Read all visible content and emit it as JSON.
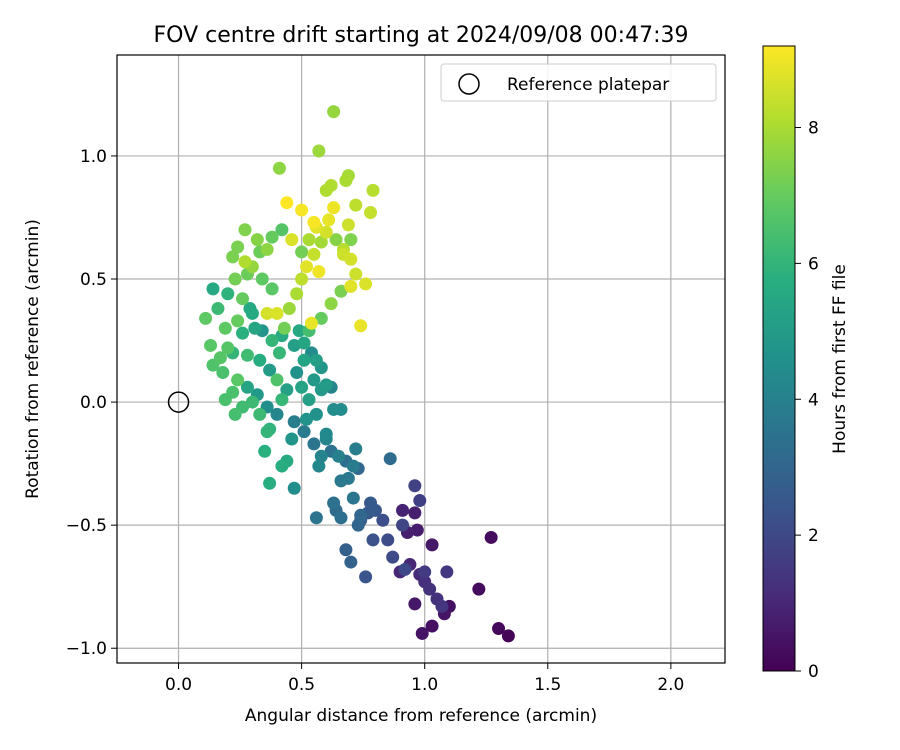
{
  "chart_data": {
    "type": "scatter",
    "title": "FOV centre drift starting at 2024/09/08 00:47:39",
    "xlabel": "Angular distance from reference (arcmin)",
    "ylabel": "Rotation from reference (arcmin)",
    "xlim": [
      -0.25,
      2.22
    ],
    "ylim": [
      -1.06,
      1.41
    ],
    "x_ticks": [
      0.0,
      0.5,
      1.0,
      1.5,
      2.0
    ],
    "x_tick_labels": [
      "0.0",
      "0.5",
      "1.0",
      "1.5",
      "2.0"
    ],
    "y_ticks": [
      -1.0,
      -0.5,
      0.0,
      0.5,
      1.0
    ],
    "y_tick_labels": [
      "−1.0",
      "−0.5",
      "0.0",
      "0.5",
      "1.0"
    ],
    "grid": true,
    "legend": {
      "placement": "top-right",
      "entries": [
        "Reference platepar"
      ]
    },
    "reference_point": {
      "x": 0.0,
      "y": 0.0
    },
    "colorbar": {
      "label": "Hours from first FF file",
      "min": 0,
      "max": 9.2,
      "ticks": [
        0,
        2,
        4,
        6,
        8
      ],
      "tick_labels": [
        "0",
        "2",
        "4",
        "6",
        "8"
      ],
      "colormap": "viridis"
    },
    "points": [
      {
        "x": 1.34,
        "y": -0.95,
        "h": 0.1
      },
      {
        "x": 1.3,
        "y": -0.92,
        "h": 0.2
      },
      {
        "x": 1.27,
        "y": -0.55,
        "h": 0.3
      },
      {
        "x": 1.22,
        "y": -0.76,
        "h": 0.3
      },
      {
        "x": 1.1,
        "y": -0.83,
        "h": 0.4
      },
      {
        "x": 1.08,
        "y": -0.86,
        "h": 0.5
      },
      {
        "x": 1.03,
        "y": -0.91,
        "h": 0.4
      },
      {
        "x": 0.99,
        "y": -0.94,
        "h": 0.5
      },
      {
        "x": 0.96,
        "y": -0.82,
        "h": 0.6
      },
      {
        "x": 1.03,
        "y": -0.58,
        "h": 0.6
      },
      {
        "x": 0.97,
        "y": -0.52,
        "h": 0.7
      },
      {
        "x": 0.96,
        "y": -0.45,
        "h": 0.8
      },
      {
        "x": 0.93,
        "y": -0.53,
        "h": 0.8
      },
      {
        "x": 0.91,
        "y": -0.44,
        "h": 0.9
      },
      {
        "x": 0.9,
        "y": -0.69,
        "h": 1.0
      },
      {
        "x": 0.94,
        "y": -0.66,
        "h": 1.0
      },
      {
        "x": 0.98,
        "y": -0.7,
        "h": 1.1
      },
      {
        "x": 1.0,
        "y": -0.73,
        "h": 1.2
      },
      {
        "x": 1.02,
        "y": -0.76,
        "h": 1.3
      },
      {
        "x": 1.05,
        "y": -0.8,
        "h": 1.3
      },
      {
        "x": 1.07,
        "y": -0.83,
        "h": 1.4
      },
      {
        "x": 1.09,
        "y": -0.69,
        "h": 1.5
      },
      {
        "x": 1.0,
        "y": -0.69,
        "h": 1.6
      },
      {
        "x": 0.98,
        "y": -0.4,
        "h": 1.7
      },
      {
        "x": 0.96,
        "y": -0.34,
        "h": 1.8
      },
      {
        "x": 0.91,
        "y": -0.5,
        "h": 1.9
      },
      {
        "x": 0.92,
        "y": -0.68,
        "h": 2.0
      },
      {
        "x": 0.87,
        "y": -0.63,
        "h": 2.1
      },
      {
        "x": 0.85,
        "y": -0.56,
        "h": 2.1
      },
      {
        "x": 0.83,
        "y": -0.48,
        "h": 2.2
      },
      {
        "x": 0.79,
        "y": -0.56,
        "h": 2.3
      },
      {
        "x": 0.76,
        "y": -0.71,
        "h": 2.4
      },
      {
        "x": 0.8,
        "y": -0.44,
        "h": 2.5
      },
      {
        "x": 0.78,
        "y": -0.41,
        "h": 2.6
      },
      {
        "x": 0.77,
        "y": -0.45,
        "h": 2.6
      },
      {
        "x": 0.74,
        "y": -0.48,
        "h": 2.7
      },
      {
        "x": 0.68,
        "y": -0.6,
        "h": 2.8
      },
      {
        "x": 0.7,
        "y": -0.65,
        "h": 2.9
      },
      {
        "x": 0.73,
        "y": -0.5,
        "h": 3.0
      },
      {
        "x": 0.74,
        "y": -0.46,
        "h": 3.1
      },
      {
        "x": 0.86,
        "y": -0.23,
        "h": 3.2
      },
      {
        "x": 0.64,
        "y": -0.44,
        "h": 3.2
      },
      {
        "x": 0.66,
        "y": -0.47,
        "h": 3.3
      },
      {
        "x": 0.63,
        "y": -0.41,
        "h": 3.4
      },
      {
        "x": 0.56,
        "y": -0.47,
        "h": 3.5
      },
      {
        "x": 0.71,
        "y": -0.39,
        "h": 3.6
      },
      {
        "x": 0.69,
        "y": -0.31,
        "h": 3.7
      },
      {
        "x": 0.66,
        "y": -0.32,
        "h": 3.7
      },
      {
        "x": 0.71,
        "y": -0.26,
        "h": 3.8
      },
      {
        "x": 0.72,
        "y": -0.19,
        "h": 3.9
      },
      {
        "x": 0.65,
        "y": -0.22,
        "h": 4.0
      },
      {
        "x": 0.6,
        "y": -0.15,
        "h": 4.1
      },
      {
        "x": 0.58,
        "y": -0.22,
        "h": 4.1
      },
      {
        "x": 0.57,
        "y": -0.26,
        "h": 4.2
      },
      {
        "x": 0.6,
        "y": -0.13,
        "h": 4.3
      },
      {
        "x": 0.63,
        "y": -0.03,
        "h": 4.4
      },
      {
        "x": 0.66,
        "y": -0.03,
        "h": 4.4
      },
      {
        "x": 0.47,
        "y": -0.35,
        "h": 4.5
      },
      {
        "x": 0.56,
        "y": -0.05,
        "h": 4.6
      },
      {
        "x": 0.52,
        "y": -0.07,
        "h": 4.7
      },
      {
        "x": 0.46,
        "y": -0.15,
        "h": 4.8
      },
      {
        "x": 0.55,
        "y": 0.09,
        "h": 4.9
      },
      {
        "x": 0.58,
        "y": 0.05,
        "h": 4.9
      },
      {
        "x": 0.6,
        "y": 0.07,
        "h": 5.0
      },
      {
        "x": 0.56,
        "y": 0.17,
        "h": 5.1
      },
      {
        "x": 0.53,
        "y": 0.01,
        "h": 5.2
      },
      {
        "x": 0.5,
        "y": 0.06,
        "h": 5.3
      },
      {
        "x": 0.51,
        "y": 0.17,
        "h": 5.3
      },
      {
        "x": 0.51,
        "y": 0.24,
        "h": 5.4
      },
      {
        "x": 0.49,
        "y": 0.29,
        "h": 5.5
      },
      {
        "x": 0.44,
        "y": -0.24,
        "h": 5.6
      },
      {
        "x": 0.42,
        "y": -0.26,
        "h": 5.7
      },
      {
        "x": 0.37,
        "y": -0.33,
        "h": 5.7
      },
      {
        "x": 0.35,
        "y": -0.2,
        "h": 5.8
      },
      {
        "x": 0.37,
        "y": -0.11,
        "h": 5.9
      },
      {
        "x": 0.36,
        "y": -0.12,
        "h": 6.0
      },
      {
        "x": 0.42,
        "y": 0.01,
        "h": 6.1
      },
      {
        "x": 0.33,
        "y": -0.05,
        "h": 6.2
      },
      {
        "x": 0.3,
        "y": 0.0,
        "h": 6.2
      },
      {
        "x": 0.26,
        "y": -0.02,
        "h": 6.3
      },
      {
        "x": 0.23,
        "y": -0.05,
        "h": 6.4
      },
      {
        "x": 0.22,
        "y": 0.04,
        "h": 6.5
      },
      {
        "x": 0.19,
        "y": 0.01,
        "h": 6.5
      },
      {
        "x": 0.14,
        "y": 0.15,
        "h": 6.6
      },
      {
        "x": 0.17,
        "y": 0.18,
        "h": 6.7
      },
      {
        "x": 0.2,
        "y": 0.22,
        "h": 6.7
      },
      {
        "x": 0.13,
        "y": 0.23,
        "h": 6.8
      },
      {
        "x": 0.19,
        "y": 0.3,
        "h": 6.9
      },
      {
        "x": 0.24,
        "y": 0.33,
        "h": 7.0
      },
      {
        "x": 0.26,
        "y": 0.42,
        "h": 7.0
      },
      {
        "x": 0.28,
        "y": 0.52,
        "h": 7.1
      },
      {
        "x": 0.23,
        "y": 0.5,
        "h": 7.2
      },
      {
        "x": 0.22,
        "y": 0.59,
        "h": 7.3
      },
      {
        "x": 0.24,
        "y": 0.63,
        "h": 7.3
      },
      {
        "x": 0.27,
        "y": 0.7,
        "h": 7.4
      },
      {
        "x": 0.32,
        "y": 0.66,
        "h": 7.5
      },
      {
        "x": 0.36,
        "y": 0.62,
        "h": 7.6
      },
      {
        "x": 0.41,
        "y": 0.95,
        "h": 7.6
      },
      {
        "x": 0.63,
        "y": 1.18,
        "h": 7.7
      },
      {
        "x": 0.57,
        "y": 1.02,
        "h": 7.8
      },
      {
        "x": 0.69,
        "y": 0.92,
        "h": 7.9
      },
      {
        "x": 0.68,
        "y": 0.9,
        "h": 8.0
      },
      {
        "x": 0.6,
        "y": 0.86,
        "h": 8.1
      },
      {
        "x": 0.62,
        "y": 0.88,
        "h": 8.1
      },
      {
        "x": 0.79,
        "y": 0.86,
        "h": 8.2
      },
      {
        "x": 0.72,
        "y": 0.8,
        "h": 8.3
      },
      {
        "x": 0.78,
        "y": 0.77,
        "h": 8.4
      },
      {
        "x": 0.69,
        "y": 0.72,
        "h": 8.5
      },
      {
        "x": 0.67,
        "y": 0.6,
        "h": 8.5
      },
      {
        "x": 0.7,
        "y": 0.58,
        "h": 8.6
      },
      {
        "x": 0.76,
        "y": 0.48,
        "h": 8.7
      },
      {
        "x": 0.7,
        "y": 0.47,
        "h": 8.8
      },
      {
        "x": 0.74,
        "y": 0.31,
        "h": 8.9
      },
      {
        "x": 0.57,
        "y": 0.53,
        "h": 9.0
      },
      {
        "x": 0.55,
        "y": 0.73,
        "h": 9.1
      },
      {
        "x": 0.44,
        "y": 0.81,
        "h": 9.2
      },
      {
        "x": 0.5,
        "y": 0.78,
        "h": 9.1
      },
      {
        "x": 0.63,
        "y": 0.79,
        "h": 9.0
      },
      {
        "x": 0.54,
        "y": 0.32,
        "h": 8.9
      },
      {
        "x": 0.4,
        "y": 0.36,
        "h": 8.7
      },
      {
        "x": 0.36,
        "y": 0.36,
        "h": 8.6
      },
      {
        "x": 0.3,
        "y": 0.36,
        "h": 5.6
      },
      {
        "x": 0.31,
        "y": 0.3,
        "h": 5.4
      },
      {
        "x": 0.26,
        "y": 0.28,
        "h": 5.8
      },
      {
        "x": 0.22,
        "y": 0.2,
        "h": 6.0
      },
      {
        "x": 0.28,
        "y": 0.19,
        "h": 6.3
      },
      {
        "x": 0.33,
        "y": 0.17,
        "h": 5.7
      },
      {
        "x": 0.37,
        "y": 0.13,
        "h": 5.0
      },
      {
        "x": 0.4,
        "y": 0.09,
        "h": 6.6
      },
      {
        "x": 0.44,
        "y": 0.05,
        "h": 5.2
      },
      {
        "x": 0.48,
        "y": 0.12,
        "h": 4.6
      },
      {
        "x": 0.41,
        "y": 0.2,
        "h": 6.1
      },
      {
        "x": 0.43,
        "y": 0.3,
        "h": 7.2
      },
      {
        "x": 0.45,
        "y": 0.38,
        "h": 7.8
      },
      {
        "x": 0.48,
        "y": 0.44,
        "h": 8.0
      },
      {
        "x": 0.5,
        "y": 0.5,
        "h": 8.3
      },
      {
        "x": 0.52,
        "y": 0.55,
        "h": 8.8
      },
      {
        "x": 0.55,
        "y": 0.6,
        "h": 8.4
      },
      {
        "x": 0.58,
        "y": 0.65,
        "h": 7.9
      },
      {
        "x": 0.6,
        "y": 0.69,
        "h": 8.6
      },
      {
        "x": 0.64,
        "y": 0.66,
        "h": 7.5
      },
      {
        "x": 0.67,
        "y": 0.62,
        "h": 8.2
      },
      {
        "x": 0.7,
        "y": 0.66,
        "h": 7.4
      },
      {
        "x": 0.72,
        "y": 0.52,
        "h": 8.5
      },
      {
        "x": 0.66,
        "y": 0.45,
        "h": 7.3
      },
      {
        "x": 0.62,
        "y": 0.4,
        "h": 7.6
      },
      {
        "x": 0.58,
        "y": 0.34,
        "h": 7.0
      },
      {
        "x": 0.53,
        "y": 0.29,
        "h": 6.4
      },
      {
        "x": 0.38,
        "y": 0.46,
        "h": 6.8
      },
      {
        "x": 0.34,
        "y": 0.5,
        "h": 6.9
      },
      {
        "x": 0.3,
        "y": 0.55,
        "h": 7.7
      },
      {
        "x": 0.27,
        "y": 0.57,
        "h": 8.1
      },
      {
        "x": 0.33,
        "y": 0.61,
        "h": 7.1
      },
      {
        "x": 0.38,
        "y": 0.67,
        "h": 7.0
      },
      {
        "x": 0.42,
        "y": 0.7,
        "h": 6.7
      },
      {
        "x": 0.46,
        "y": 0.66,
        "h": 8.7
      },
      {
        "x": 0.5,
        "y": 0.61,
        "h": 7.2
      },
      {
        "x": 0.53,
        "y": 0.66,
        "h": 8.0
      },
      {
        "x": 0.56,
        "y": 0.71,
        "h": 8.8
      },
      {
        "x": 0.61,
        "y": 0.74,
        "h": 8.9
      },
      {
        "x": 0.2,
        "y": 0.44,
        "h": 5.9
      },
      {
        "x": 0.16,
        "y": 0.38,
        "h": 6.2
      },
      {
        "x": 0.14,
        "y": 0.46,
        "h": 5.5
      },
      {
        "x": 0.11,
        "y": 0.34,
        "h": 6.9
      },
      {
        "x": 0.18,
        "y": 0.12,
        "h": 6.5
      },
      {
        "x": 0.24,
        "y": 0.09,
        "h": 6.8
      },
      {
        "x": 0.28,
        "y": 0.06,
        "h": 5.3
      },
      {
        "x": 0.32,
        "y": 0.03,
        "h": 4.9
      },
      {
        "x": 0.36,
        "y": -0.02,
        "h": 4.5
      },
      {
        "x": 0.4,
        "y": -0.05,
        "h": 4.2
      },
      {
        "x": 0.47,
        "y": -0.08,
        "h": 3.9
      },
      {
        "x": 0.51,
        "y": -0.12,
        "h": 3.8
      },
      {
        "x": 0.55,
        "y": -0.17,
        "h": 3.6
      },
      {
        "x": 0.62,
        "y": -0.2,
        "h": 3.4
      },
      {
        "x": 0.68,
        "y": -0.24,
        "h": 3.3
      },
      {
        "x": 0.73,
        "y": -0.27,
        "h": 3.1
      },
      {
        "x": 0.62,
        "y": 0.06,
        "h": 4.1
      },
      {
        "x": 0.58,
        "y": 0.14,
        "h": 4.8
      },
      {
        "x": 0.54,
        "y": 0.2,
        "h": 4.4
      },
      {
        "x": 0.47,
        "y": 0.23,
        "h": 5.1
      },
      {
        "x": 0.42,
        "y": 0.27,
        "h": 5.6
      },
      {
        "x": 0.38,
        "y": 0.25,
        "h": 6.0
      },
      {
        "x": 0.34,
        "y": 0.29,
        "h": 4.7
      },
      {
        "x": 0.29,
        "y": 0.38,
        "h": 5.5
      }
    ]
  }
}
